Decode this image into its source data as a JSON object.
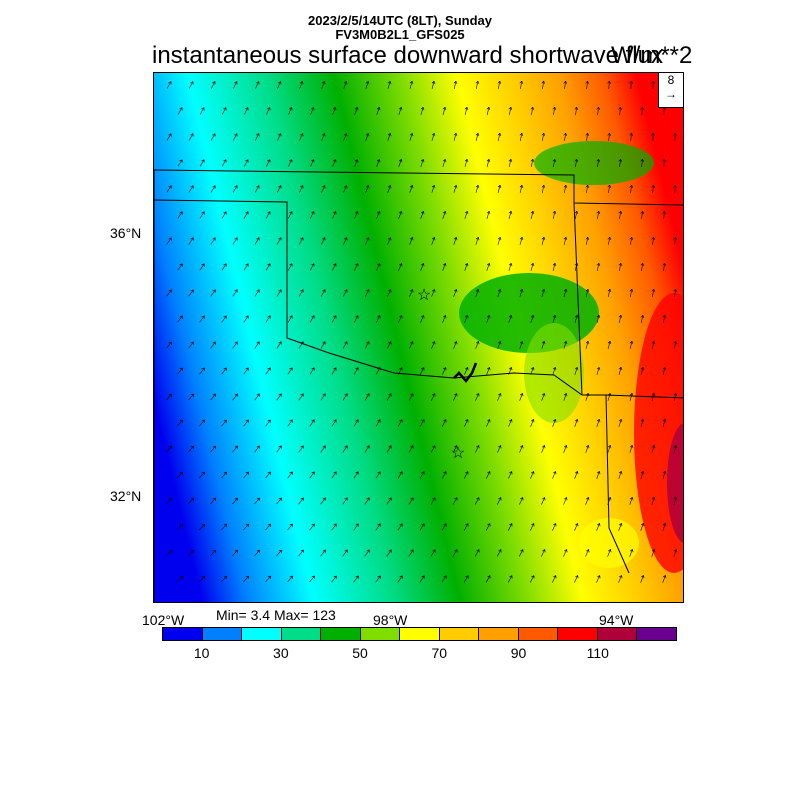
{
  "header": {
    "line1": "2023/2/5/14UTC (8LT), Sunday",
    "line2": "FV3M0B2L1_GFS025",
    "title": "instantaneous surface downward shortwave flux",
    "units": "W/m**2"
  },
  "stats": "Min= 3.4 Max= 123",
  "ref_vector": {
    "label": "8",
    "arrow": "→"
  },
  "lat_labels": [
    "36°N",
    "32°N"
  ],
  "lon_labels": [
    "102°W",
    "98°W",
    "94°W"
  ],
  "colorbar": {
    "colors": [
      "#0000ee",
      "#0080ff",
      "#00ffff",
      "#00dd88",
      "#00b000",
      "#80dd00",
      "#ffff00",
      "#ffcc00",
      "#ffa000",
      "#ff5a00",
      "#ff0000",
      "#b0003c",
      "#6a0090"
    ],
    "labels": [
      "10",
      "30",
      "50",
      "70",
      "90",
      "110"
    ]
  },
  "map": {
    "field": "surface downward shortwave flux",
    "markers": [
      "star-marker-1",
      "star-marker-2"
    ]
  }
}
